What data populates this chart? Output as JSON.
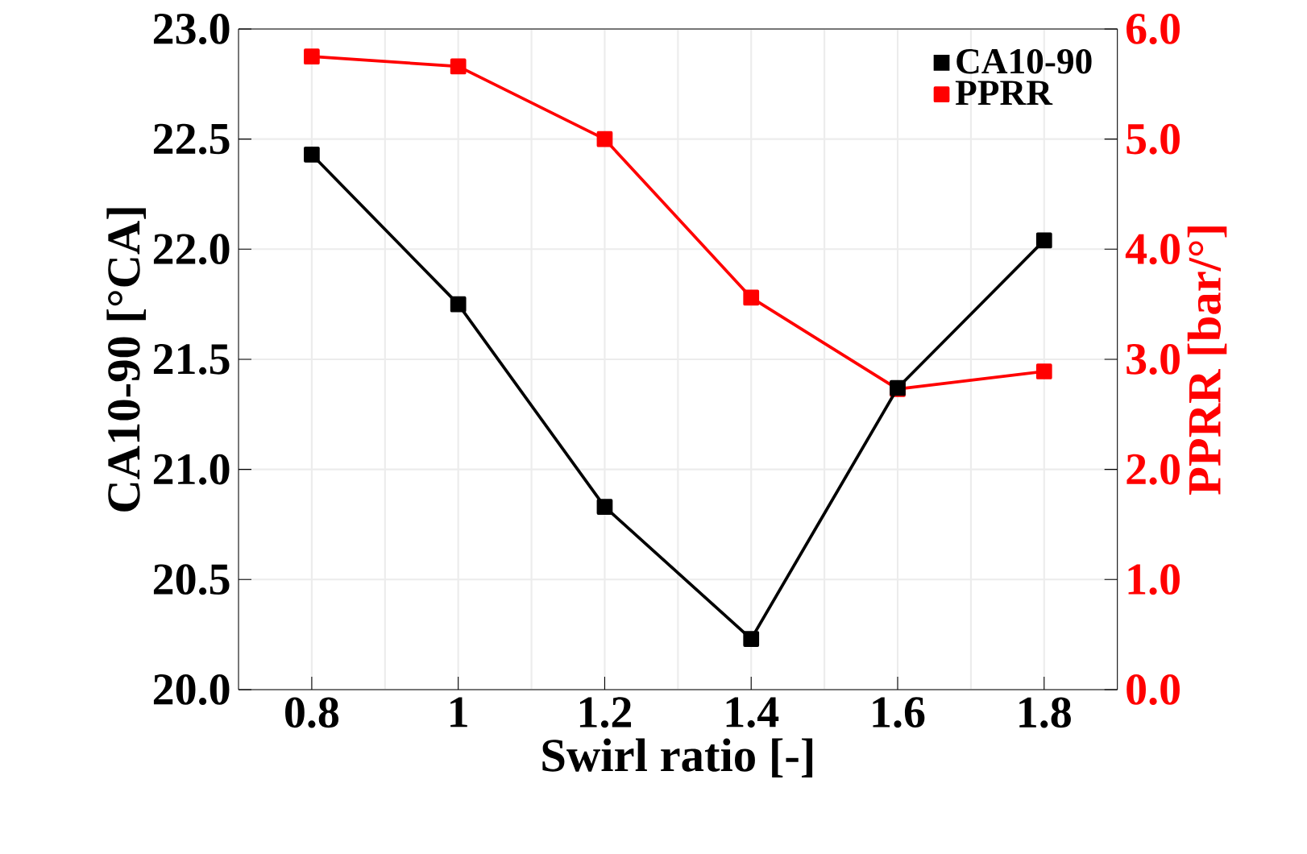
{
  "chart_data": {
    "type": "line",
    "xlabel": "Swirl ratio [-]",
    "ylabel": "CA10-90 [°CA]",
    "y2label": "PPRR [bar/°]",
    "x": [
      0.8,
      1.0,
      1.2,
      1.4,
      1.6,
      1.8
    ],
    "series": [
      {
        "name": "CA10-90",
        "color": "#000000",
        "values": [
          22.43,
          21.75,
          20.83,
          20.23,
          21.37,
          22.04
        ]
      },
      {
        "name": "PPRR",
        "color": "#ff0000",
        "axis": "y2",
        "values": [
          5.75,
          5.66,
          5.0,
          3.56,
          2.73,
          2.89
        ]
      }
    ],
    "xlim": [
      0.7,
      1.9
    ],
    "xticks": [
      {
        "value": 0.8,
        "label": "0.8"
      },
      1,
      {
        "value": 1.2,
        "label": "1.2"
      },
      {
        "value": 1.4,
        "label": "1.4"
      },
      {
        "value": 1.6,
        "label": "1.6"
      },
      {
        "value": 1.8,
        "label": "1.8"
      }
    ],
    "ylim": [
      20,
      23
    ],
    "yticks": [
      {
        "value": 20,
        "label": "20.0"
      },
      {
        "value": 20.5,
        "label": "20.5"
      },
      {
        "value": 21,
        "label": "21.0"
      },
      {
        "value": 21.5,
        "label": "21.5"
      },
      {
        "value": 22,
        "label": "22.0"
      },
      {
        "value": 22.5,
        "label": "22.5"
      },
      {
        "value": 23,
        "label": "23.0"
      }
    ],
    "y2lim": [
      0,
      6
    ],
    "y2ticks": [
      {
        "value": 0,
        "label": "0.0"
      },
      {
        "value": 1,
        "label": "1.0"
      },
      {
        "value": 2,
        "label": "2.0"
      },
      {
        "value": 3,
        "label": "3.0"
      },
      {
        "value": 4,
        "label": "4.0"
      },
      {
        "value": 5,
        "label": "5.0"
      },
      {
        "value": 6,
        "label": "6.0"
      }
    ],
    "grid": true,
    "legend": "top right",
    "marker": "square",
    "line_style": "solid"
  }
}
